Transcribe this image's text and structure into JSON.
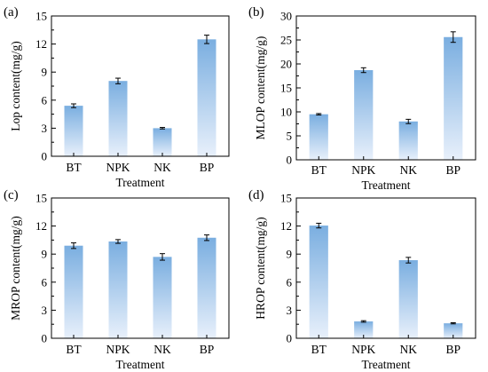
{
  "chart_data": [
    {
      "type": "bar",
      "panel_label": "(a)",
      "categories": [
        "BT",
        "NPK",
        "NK",
        "BP"
      ],
      "values": [
        5.4,
        8.05,
        3.0,
        12.5
      ],
      "errors": [
        0.2,
        0.3,
        0.08,
        0.45
      ],
      "ylabel": "Lop content(mg/g)",
      "xlabel": "Treatment",
      "ylim": [
        0,
        15
      ],
      "yticks": [
        0,
        3,
        6,
        9,
        12,
        15
      ],
      "grid": false
    },
    {
      "type": "bar",
      "panel_label": "(b)",
      "categories": [
        "BT",
        "NPK",
        "NK",
        "BP"
      ],
      "values": [
        9.5,
        18.7,
        8.0,
        25.6
      ],
      "errors": [
        0.15,
        0.5,
        0.45,
        1.1
      ],
      "ylabel": "MLOP content(mg/g)",
      "xlabel": "Treatment",
      "ylim": [
        0,
        30
      ],
      "yticks": [
        0,
        5,
        10,
        15,
        20,
        25,
        30
      ],
      "grid": false
    },
    {
      "type": "bar",
      "panel_label": "(c)",
      "categories": [
        "BT",
        "NPK",
        "NK",
        "BP"
      ],
      "values": [
        9.9,
        10.35,
        8.7,
        10.75
      ],
      "errors": [
        0.3,
        0.2,
        0.35,
        0.3
      ],
      "ylabel": "MROP content(mg/g)",
      "xlabel": "Treatment",
      "ylim": [
        0,
        15
      ],
      "yticks": [
        0,
        3,
        6,
        9,
        12,
        15
      ],
      "grid": false
    },
    {
      "type": "bar",
      "panel_label": "(d)",
      "categories": [
        "BT",
        "NPK",
        "NK",
        "BP"
      ],
      "values": [
        12.05,
        1.8,
        8.35,
        1.6
      ],
      "errors": [
        0.25,
        0.08,
        0.3,
        0.06
      ],
      "ylabel": "HROP content(mg/g)",
      "xlabel": "Treatment",
      "ylim": [
        0,
        15
      ],
      "yticks": [
        0,
        3,
        6,
        9,
        12,
        15
      ],
      "grid": false
    }
  ],
  "colors": {
    "bar_top": "#7aaee0",
    "bar_bottom": "#e8f0fb",
    "axis": "#000000"
  }
}
